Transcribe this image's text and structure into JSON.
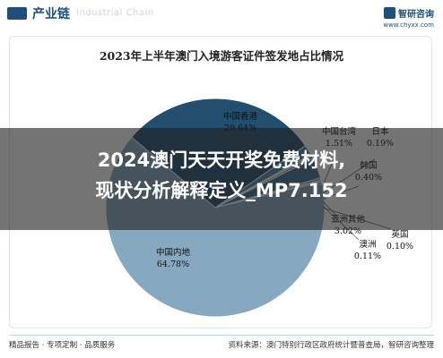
{
  "header": {
    "section_title": "产业链",
    "ghost_text": "Industrial Chain",
    "brand_name": "智研咨询",
    "brand_url": "www.chyxx.com"
  },
  "headline": {
    "line1": "2024澳门天天开奖免费材料,",
    "line2": "现状分析解释定义_MP7.152"
  },
  "footer": {
    "left": "精品报告 · 专项定制 · 品质服务",
    "right": "资料来源：澳门特别行政区政府统计暨普查局，智研咨询整理"
  },
  "colors": {
    "mainland": "#86a9c1",
    "hongkong": "#234e6d",
    "taiwan": "#4b86ad",
    "japan": "#b9d2e3",
    "korea": "#7f9db3",
    "philippines": "#5d8db0",
    "asia_other": "#3f6f93",
    "uk": "#9ec1da",
    "accent": "#1f4e79"
  },
  "chart_data": {
    "type": "pie",
    "title": "2023年上半年澳门入境游客证件签发地占比情况",
    "slices": [
      {
        "name": "中国内地",
        "value": 64.78,
        "label": "64.78%"
      },
      {
        "name": "中国香港",
        "value": 29.64,
        "label": "29.64%"
      },
      {
        "name": "中国台湾",
        "value": 1.51,
        "label": "1.51%"
      },
      {
        "name": "日本",
        "value": 0.19,
        "label": "0.19%"
      },
      {
        "name": "韩国",
        "value": 0.4,
        "label": "0.40%"
      },
      {
        "name": "亚洲其他",
        "value": 3.02,
        "label": "3.02%"
      },
      {
        "name": "澳洲",
        "value": 0.11,
        "label": "0.11%"
      },
      {
        "name": "英国",
        "value": 0.1,
        "label": "0.10%"
      }
    ]
  }
}
